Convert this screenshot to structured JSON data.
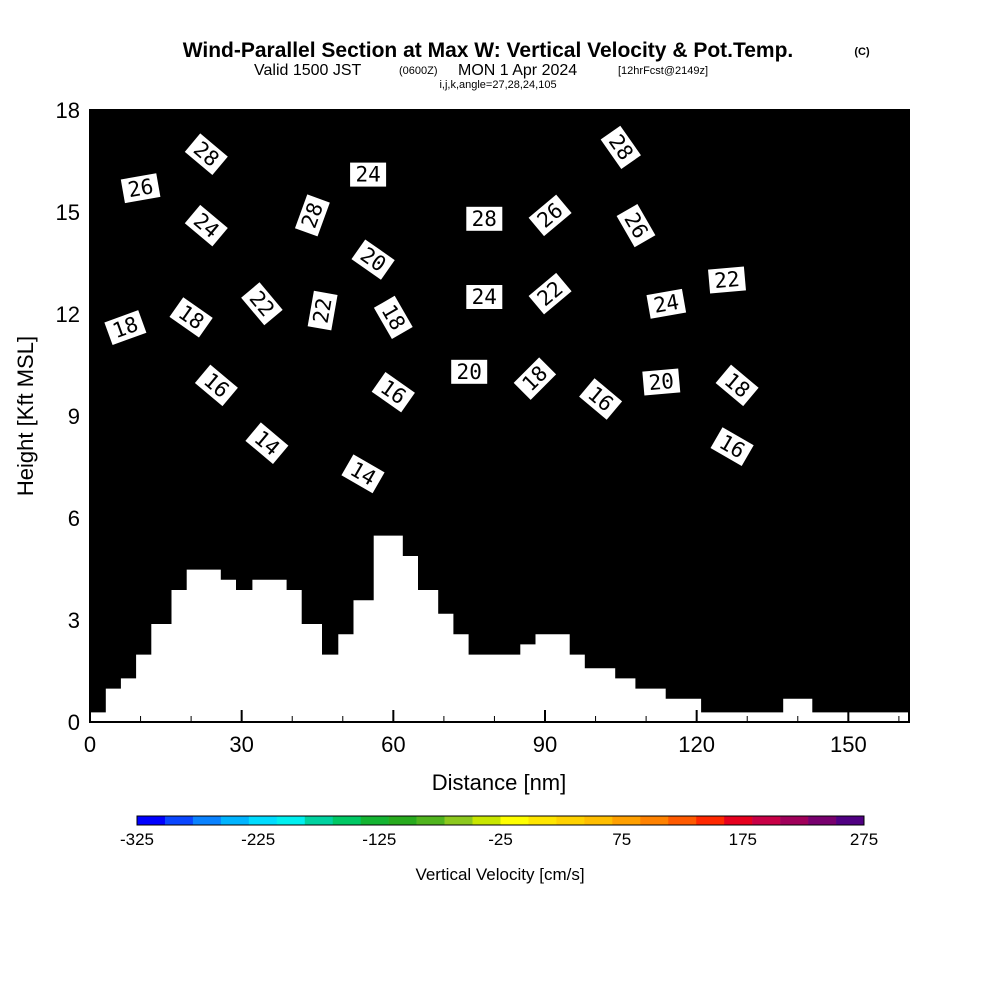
{
  "title": {
    "main": "Wind-Parallel Section at Max W: Vertical Velocity & Pot.Temp.",
    "copyright": "(C)",
    "valid_prefix": "Valid 1500 JST",
    "valid_utc": "(0600Z)",
    "valid_date": "MON 1 Apr 2024",
    "forecast": "[12hrFcst@2149z]",
    "indices": "i,j,k,angle=27,28,24,105"
  },
  "chart_data": {
    "type": "heatmap",
    "xlabel": "Distance [nm]",
    "ylabel": "Height [Kft MSL]",
    "xlim": [
      0,
      162
    ],
    "ylim": [
      0,
      18
    ],
    "x_ticks": [
      0,
      30,
      60,
      90,
      120,
      150
    ],
    "y_ticks": [
      0,
      3,
      6,
      9,
      12,
      15,
      18
    ],
    "colorbar": {
      "title": "Vertical Velocity [cm/s]",
      "min": -325,
      "max": 275,
      "step": 25,
      "tick_labels": [
        "-325",
        "-225",
        "-125",
        "-25",
        "75",
        "175",
        "275"
      ],
      "colors": [
        "#0000ff",
        "#0a46ff",
        "#0a82ff",
        "#00b4ff",
        "#00dcff",
        "#00f0f0",
        "#00d2a0",
        "#00c864",
        "#14b432",
        "#28aa1e",
        "#50b41e",
        "#8cc81e",
        "#c8e600",
        "#ffff00",
        "#ffe600",
        "#ffd200",
        "#ffbe00",
        "#ffa000",
        "#ff8200",
        "#ff5a00",
        "#ff2800",
        "#e6001e",
        "#c80046",
        "#a0005a",
        "#78006e",
        "#500082"
      ]
    },
    "terrain_profile_kft": [
      [
        0,
        0.3
      ],
      [
        3,
        0.3
      ],
      [
        3,
        1.0
      ],
      [
        6,
        1.0
      ],
      [
        6,
        1.3
      ],
      [
        9,
        1.3
      ],
      [
        9,
        2.0
      ],
      [
        12,
        2.0
      ],
      [
        12,
        2.9
      ],
      [
        16,
        2.9
      ],
      [
        16,
        3.9
      ],
      [
        19,
        3.9
      ],
      [
        19,
        4.5
      ],
      [
        26,
        4.5
      ],
      [
        26,
        4.2
      ],
      [
        29,
        4.2
      ],
      [
        29,
        3.9
      ],
      [
        32,
        3.9
      ],
      [
        32,
        4.2
      ],
      [
        39,
        4.2
      ],
      [
        39,
        3.9
      ],
      [
        42,
        3.9
      ],
      [
        42,
        2.9
      ],
      [
        46,
        2.9
      ],
      [
        46,
        2.0
      ],
      [
        49,
        2.0
      ],
      [
        49,
        2.6
      ],
      [
        52,
        2.6
      ],
      [
        52,
        3.6
      ],
      [
        56,
        3.6
      ],
      [
        56,
        5.5
      ],
      [
        62,
        5.5
      ],
      [
        62,
        4.9
      ],
      [
        65,
        4.9
      ],
      [
        65,
        3.9
      ],
      [
        69,
        3.9
      ],
      [
        69,
        3.2
      ],
      [
        72,
        3.2
      ],
      [
        72,
        2.6
      ],
      [
        75,
        2.6
      ],
      [
        75,
        2.0
      ],
      [
        85,
        2.0
      ],
      [
        85,
        2.3
      ],
      [
        88,
        2.3
      ],
      [
        88,
        2.6
      ],
      [
        95,
        2.6
      ],
      [
        95,
        2.0
      ],
      [
        98,
        2.0
      ],
      [
        98,
        1.6
      ],
      [
        104,
        1.6
      ],
      [
        104,
        1.3
      ],
      [
        108,
        1.3
      ],
      [
        108,
        1.0
      ],
      [
        114,
        1.0
      ],
      [
        114,
        0.7
      ],
      [
        121,
        0.7
      ],
      [
        121,
        0.3
      ],
      [
        137,
        0.3
      ],
      [
        137,
        0.7
      ],
      [
        143,
        0.7
      ],
      [
        143,
        0.3
      ],
      [
        162,
        0.3
      ]
    ],
    "isentrope_labels": [
      {
        "value": "28",
        "x": 23,
        "y": 16.7,
        "angle": 40
      },
      {
        "value": "26",
        "x": 10,
        "y": 15.7,
        "angle": -10
      },
      {
        "value": "24",
        "x": 23,
        "y": 14.6,
        "angle": 40
      },
      {
        "value": "18",
        "x": 7,
        "y": 11.6,
        "angle": -20
      },
      {
        "value": "18",
        "x": 20,
        "y": 11.9,
        "angle": 35
      },
      {
        "value": "22",
        "x": 34,
        "y": 12.3,
        "angle": 50
      },
      {
        "value": "16",
        "x": 25,
        "y": 9.9,
        "angle": 40
      },
      {
        "value": "14",
        "x": 35,
        "y": 8.2,
        "angle": 40
      },
      {
        "value": "28",
        "x": 44,
        "y": 14.9,
        "angle": -70
      },
      {
        "value": "22",
        "x": 46,
        "y": 12.1,
        "angle": -80
      },
      {
        "value": "24",
        "x": 55,
        "y": 16.1,
        "angle": 0
      },
      {
        "value": "20",
        "x": 56,
        "y": 13.6,
        "angle": 35
      },
      {
        "value": "18",
        "x": 60,
        "y": 11.9,
        "angle": 60
      },
      {
        "value": "16",
        "x": 60,
        "y": 9.7,
        "angle": 35
      },
      {
        "value": "14",
        "x": 54,
        "y": 7.3,
        "angle": 30
      },
      {
        "value": "28",
        "x": 78,
        "y": 14.8,
        "angle": 0
      },
      {
        "value": "26",
        "x": 91,
        "y": 14.9,
        "angle": -40
      },
      {
        "value": "24",
        "x": 78,
        "y": 12.5,
        "angle": 0
      },
      {
        "value": "22",
        "x": 91,
        "y": 12.6,
        "angle": -40
      },
      {
        "value": "20",
        "x": 75,
        "y": 10.3,
        "angle": 0
      },
      {
        "value": "18",
        "x": 88,
        "y": 10.1,
        "angle": -45
      },
      {
        "value": "16",
        "x": 101,
        "y": 9.5,
        "angle": 40
      },
      {
        "value": "28",
        "x": 105,
        "y": 16.9,
        "angle": 55
      },
      {
        "value": "26",
        "x": 108,
        "y": 14.6,
        "angle": 60
      },
      {
        "value": "24",
        "x": 114,
        "y": 12.3,
        "angle": -10
      },
      {
        "value": "22",
        "x": 126,
        "y": 13.0,
        "angle": -5
      },
      {
        "value": "20",
        "x": 113,
        "y": 10.0,
        "angle": -5
      },
      {
        "value": "18",
        "x": 128,
        "y": 9.9,
        "angle": 40
      },
      {
        "value": "16",
        "x": 127,
        "y": 8.1,
        "angle": 30
      }
    ]
  }
}
